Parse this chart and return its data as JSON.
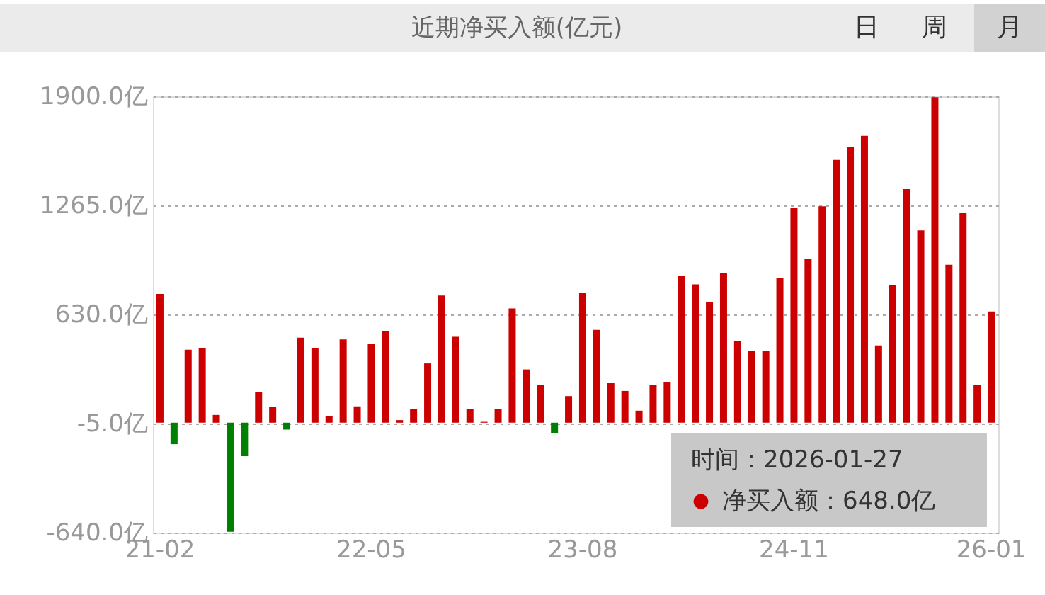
{
  "chart_data": {
    "type": "bar",
    "title": "近期净买入额(亿元)",
    "annotations": [
      "日",
      "周",
      "月",
      "时间：2026-01-27",
      "：648.0亿"
    ],
    "legend": "bottom right",
    "categories": [
      "21-02",
      null,
      null,
      null,
      null,
      null,
      null,
      null,
      null,
      null,
      null,
      null,
      null,
      null,
      null,
      "22-05",
      null,
      null,
      null,
      null,
      null,
      null,
      null,
      null,
      null,
      null,
      null,
      null,
      null,
      null,
      "23-08",
      null,
      null,
      null,
      null,
      null,
      null,
      null,
      null,
      null,
      null,
      null,
      null,
      null,
      null,
      "24-11",
      null,
      null,
      null,
      null,
      null,
      null,
      null,
      null,
      null,
      null,
      null,
      null,
      null,
      "26-01"
    ],
    "series": [
      {
        "name": "净买入额",
        "color": "#cc0000",
        "values": [
          750,
          -125,
          425,
          435,
          45,
          -635,
          -195,
          180,
          90,
          -40,
          495,
          435,
          40,
          485,
          95,
          460,
          535,
          15,
          80,
          345,
          740,
          500,
          80,
          5,
          80,
          665,
          310,
          220,
          -60,
          155,
          755,
          540,
          230,
          185,
          70,
          220,
          235,
          855,
          805,
          700,
          870,
          475,
          420,
          420,
          840,
          1250,
          955,
          1260,
          1530,
          1605,
          1670,
          450,
          800,
          1360,
          1120,
          1895,
          920,
          1220,
          220,
          648
        ],
        "colors": [
          "#cc0000",
          "#008000",
          "#cc0000",
          "#cc0000",
          "#cc0000",
          "#008000",
          "#008000",
          "#cc0000",
          "#cc0000",
          "#008000",
          "#cc0000",
          "#cc0000",
          "#cc0000",
          "#cc0000",
          "#cc0000",
          "#cc0000",
          "#cc0000",
          "#cc0000",
          "#cc0000",
          "#cc0000",
          "#cc0000",
          "#cc0000",
          "#cc0000",
          "#cc0000",
          "#cc0000",
          "#cc0000",
          "#cc0000",
          "#cc0000",
          "#008000",
          "#cc0000",
          "#cc0000",
          "#cc0000",
          "#cc0000",
          "#cc0000",
          "#cc0000",
          "#cc0000",
          "#cc0000",
          "#cc0000",
          "#cc0000",
          "#cc0000",
          "#cc0000",
          "#cc0000",
          "#cc0000",
          "#cc0000",
          "#cc0000",
          "#cc0000",
          "#cc0000",
          "#cc0000",
          "#cc0000",
          "#cc0000",
          "#cc0000",
          "#cc0000",
          "#cc0000",
          "#cc0000",
          "#cc0000",
          "#cc0000",
          "#cc0000",
          "#cc0000",
          "#cc0000",
          "#cc0000"
        ]
      }
    ],
    "ylim": [
      -640,
      1900
    ],
    "yticks": [
      {
        "value": -640,
        "label": "-640.0亿"
      },
      {
        "value": -5,
        "label": "-5.0亿"
      },
      {
        "value": 630,
        "label": "630.0亿"
      },
      {
        "value": 1265,
        "label": "1265.0亿"
      },
      {
        "value": 1900,
        "label": "1900.0亿"
      }
    ],
    "grid": "y"
  }
}
